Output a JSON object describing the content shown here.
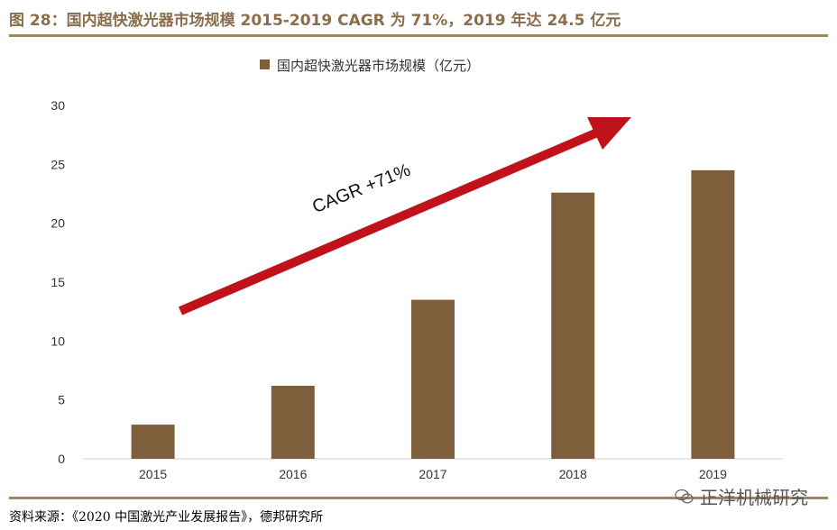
{
  "figure_title": "图 28：国内超快激光器市场规模 2015-2019 CAGR 为 71%，2019 年达 24.5 亿元",
  "source": "资料来源：《2020 中国激光产业发展报告》，德邦研究所",
  "watermark": "正洋机械研究",
  "colors": {
    "bar": "#7f5f3b",
    "arrow": "#c0121a",
    "rule": "#a18562",
    "title": "#8a6e4b"
  },
  "chart_data": {
    "type": "bar",
    "title": "",
    "xlabel": "",
    "ylabel": "",
    "legend_position": "top-center",
    "grid": false,
    "categories": [
      "2015",
      "2016",
      "2017",
      "2018",
      "2019"
    ],
    "series": [
      {
        "name": "国内超快激光器市场规模（亿元）",
        "values": [
          2.9,
          6.2,
          13.5,
          22.6,
          24.5
        ]
      }
    ],
    "ylim": [
      0,
      30
    ],
    "yticks": [
      0,
      5,
      10,
      15,
      20,
      25,
      30
    ],
    "annotations": [
      {
        "type": "arrow",
        "text": "CAGR +71%"
      }
    ]
  }
}
